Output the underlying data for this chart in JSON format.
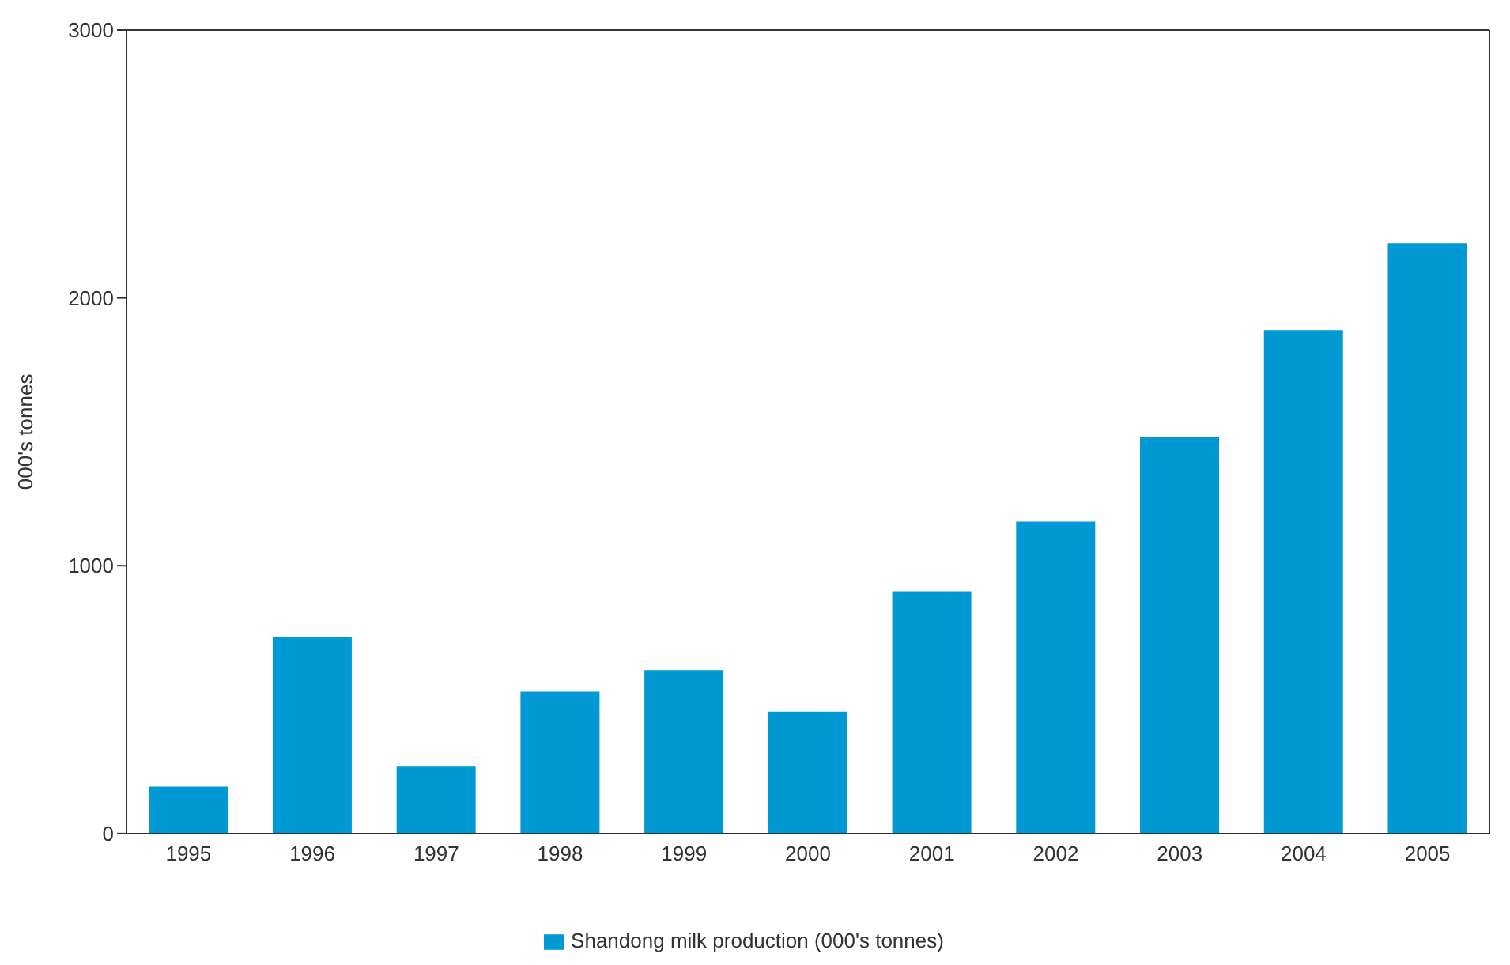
{
  "chart_data": {
    "type": "bar",
    "ylabel": "000's tonnes",
    "categories": [
      "1995",
      "1996",
      "1997",
      "1998",
      "1999",
      "2000",
      "2001",
      "2002",
      "2003",
      "2004",
      "2005"
    ],
    "series": [
      {
        "name": "Shandong milk production (000's tonnes)",
        "color": "#0099d4",
        "values": [
          175,
          735,
          250,
          530,
          610,
          455,
          905,
          1165,
          1480,
          1880,
          2205
        ]
      }
    ],
    "ylim": [
      0,
      3000
    ],
    "yticks": [
      0,
      1000,
      2000,
      3000
    ],
    "legend": "bottom"
  }
}
